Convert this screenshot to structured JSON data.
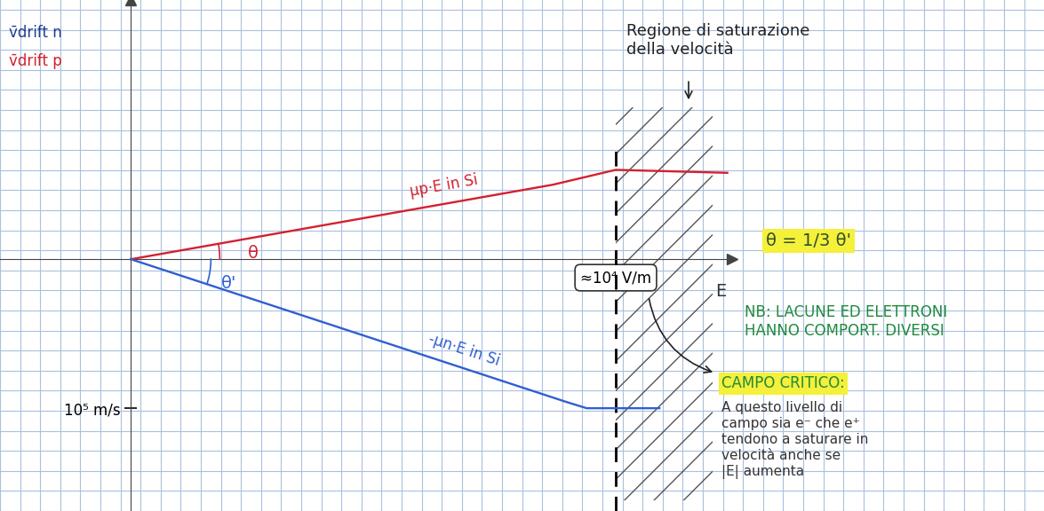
{
  "chart_data": {
    "type": "line",
    "xlabel": "E",
    "ylabel": [
      {
        "text": "v̄drift n",
        "color": "#1f3f8f"
      },
      {
        "text": "v̄drift p",
        "color": "#d4202e"
      }
    ],
    "xlim": [
      -2700,
      12400
    ],
    "ylim": [
      -169000,
      174000
    ],
    "xticks": [
      {
        "value": 10000,
        "label": "≈10⁴ V/m"
      }
    ],
    "yticks": [
      {
        "value": -100000,
        "label": "10⁵ m/s"
      }
    ],
    "grid": true,
    "critical_field": 10000,
    "saturation_region": [
      10000,
      12000
    ],
    "series": [
      {
        "name": "μp·E in Si",
        "color": "#d4202e",
        "x": [
          0,
          8700,
          10000,
          12300
        ],
        "values": [
          0,
          50000,
          60000,
          58000
        ]
      },
      {
        "name": "-μn·E in Si",
        "color": "#2f5fd0",
        "x": [
          0,
          9000,
          9400,
          10900
        ],
        "values": [
          0,
          -96000,
          -100000,
          -100000
        ]
      }
    ],
    "annotations": [
      {
        "text": "θ",
        "color": "#d4202e"
      },
      {
        "text": "θ'",
        "color": "#2f5fd0"
      },
      {
        "text": "Regione di saturazione\ndella velocità",
        "color": "#222222"
      },
      {
        "text": "θ = 1/3 θ'",
        "color": "#2d4f2d"
      },
      {
        "text": "NB: LACUNE ED ELETTRONI\nHANNO COMPORT. DIVERSI",
        "color": "#1e8a3c"
      },
      {
        "text": "CAMPO CRITICO:",
        "color": "#1e8a3c"
      },
      {
        "text": "A questo livello di\ncampo sia e⁻ che e⁺\ntendono a saturare in\nvelocità anche se\n|E| aumenta",
        "color": "#333333"
      }
    ]
  }
}
